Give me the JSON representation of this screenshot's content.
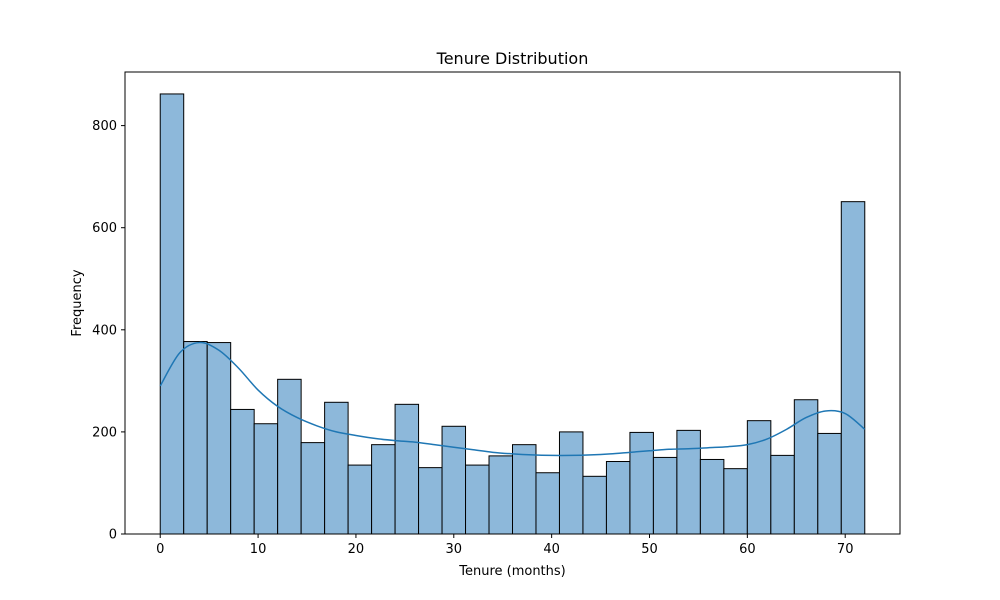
{
  "chart_data": {
    "type": "bar",
    "title": "Tenure Distribution",
    "xlabel": "Tenure (months)",
    "ylabel": "Frequency",
    "xlim": [
      -3.6,
      75.6
    ],
    "ylim": [
      0,
      905
    ],
    "xticks": [
      0,
      10,
      20,
      30,
      40,
      50,
      60,
      70
    ],
    "yticks": [
      0,
      200,
      400,
      600,
      800
    ],
    "bin_edges": [
      0,
      2.4,
      4.8,
      7.2,
      9.6,
      12,
      14.4,
      16.8,
      19.2,
      21.6,
      24,
      26.4,
      28.8,
      31.2,
      33.6,
      36,
      38.4,
      40.8,
      43.2,
      45.6,
      48,
      50.4,
      52.8,
      55.2,
      57.6,
      60,
      62.4,
      64.8,
      67.2,
      69.6,
      72
    ],
    "values": [
      862,
      377,
      375,
      244,
      216,
      303,
      179,
      258,
      135,
      175,
      254,
      130,
      211,
      135,
      153,
      175,
      120,
      200,
      113,
      142,
      199,
      150,
      203,
      146,
      128,
      222,
      154,
      263,
      197,
      651
    ],
    "kde": {
      "x": [
        0,
        2,
        4,
        6,
        8,
        10,
        12,
        14,
        16,
        18,
        20,
        22,
        24,
        26,
        28,
        30,
        32,
        34,
        36,
        38,
        40,
        42,
        44,
        46,
        48,
        50,
        52,
        54,
        56,
        58,
        60,
        62,
        64,
        66,
        68,
        70,
        72
      ],
      "y": [
        290,
        355,
        375,
        360,
        325,
        282,
        250,
        228,
        212,
        200,
        193,
        187,
        183,
        180,
        175,
        170,
        165,
        160,
        157,
        155,
        154,
        154,
        155,
        157,
        160,
        163,
        166,
        167,
        169,
        171,
        175,
        186,
        205,
        228,
        241,
        236,
        205
      ]
    },
    "grid": false,
    "colors": {
      "bar_fill": "#8db8da",
      "bar_edge": "#000000",
      "kde_line": "#1f77b4",
      "axes": "#000000",
      "background": "#ffffff"
    }
  }
}
